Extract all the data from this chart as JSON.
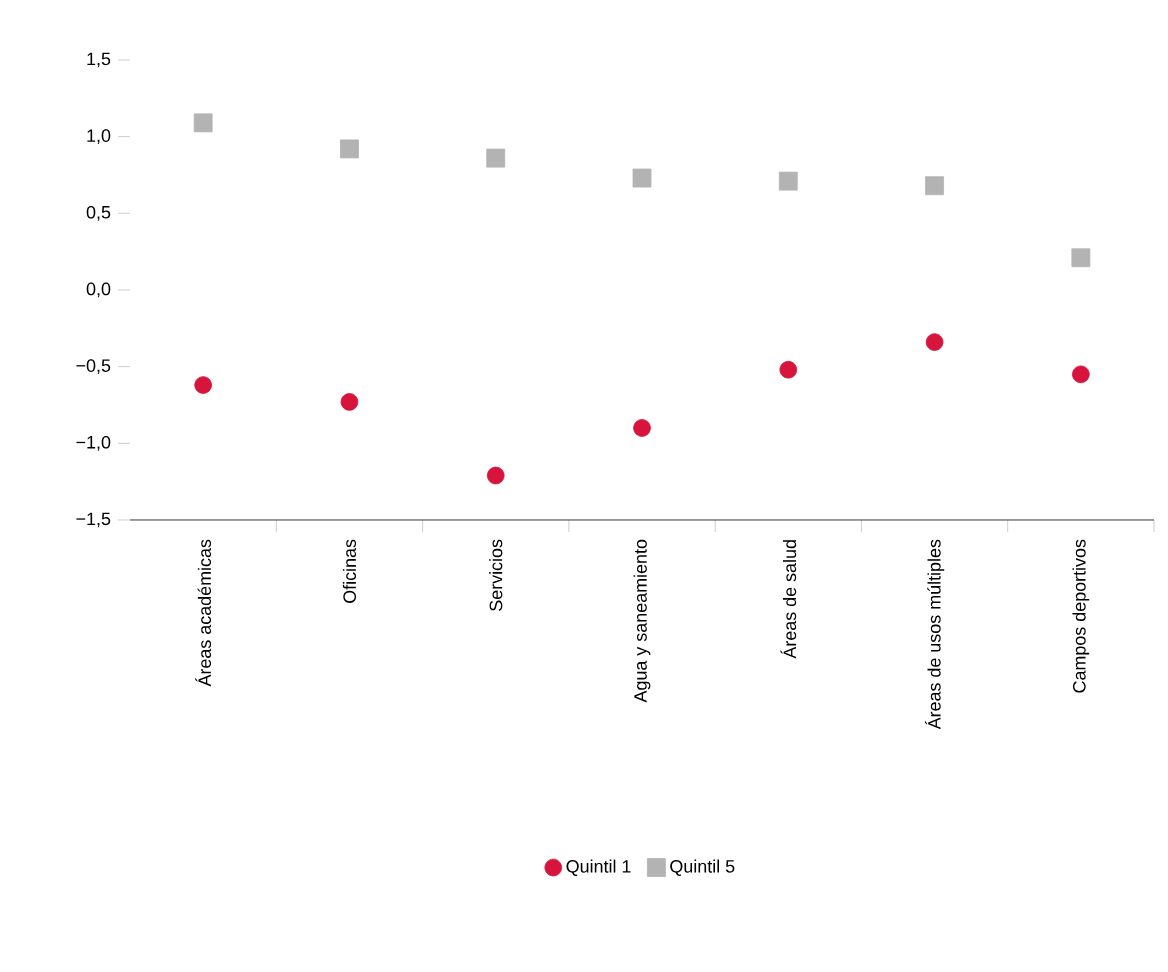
{
  "chart_data": {
    "type": "scatter",
    "categories": [
      "Áreas académicas",
      "Oficinas",
      "Servicios",
      "Agua y saneamiento",
      "Áreas de salud",
      "Áreas de usos múltiples",
      "Campos deportivos"
    ],
    "series": [
      {
        "name": "Quintil 1",
        "color": "#d7143c",
        "marker": "circle",
        "values": [
          -0.62,
          -0.73,
          -1.21,
          -0.9,
          -0.52,
          -0.34,
          -0.55
        ]
      },
      {
        "name": "Quintil 5",
        "color": "#b3b3b3",
        "marker": "square",
        "values": [
          1.09,
          0.92,
          0.86,
          0.73,
          0.71,
          0.68,
          0.21
        ]
      }
    ],
    "ylim": [
      -1.5,
      1.5
    ],
    "yticks": [
      {
        "value": -1.5,
        "label": "−1,5"
      },
      {
        "value": -1.0,
        "label": "−1,0"
      },
      {
        "value": -0.5,
        "label": "−0,5"
      },
      {
        "value": 0.0,
        "label": "0,0"
      },
      {
        "value": 0.5,
        "label": "0,5"
      },
      {
        "value": 1.0,
        "label": "1,0"
      },
      {
        "value": 1.5,
        "label": "1,5"
      }
    ],
    "grid": false,
    "legend": "bottom"
  }
}
